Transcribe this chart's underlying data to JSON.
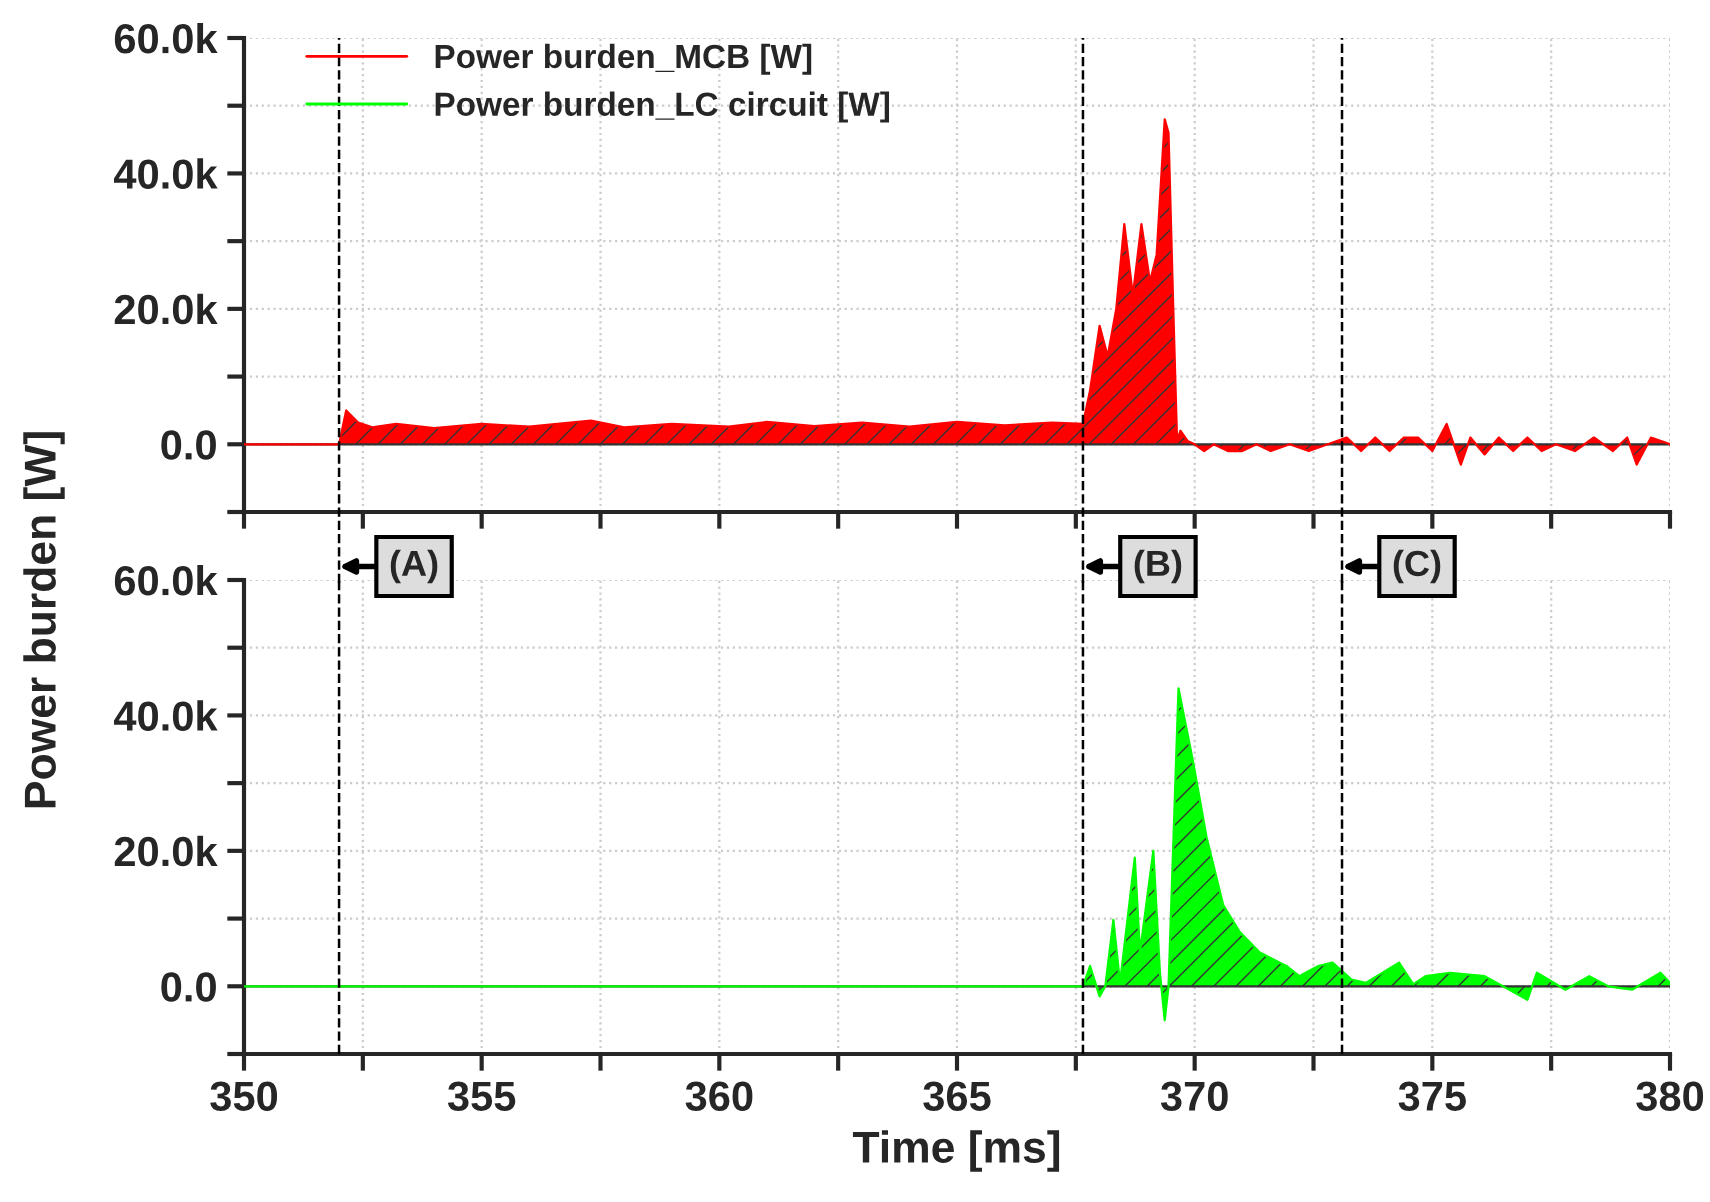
{
  "chart_data": [
    {
      "type": "area",
      "ylabel": "Power burden [W]",
      "xlim": [
        350,
        380
      ],
      "ylim": [
        -10000,
        60000
      ],
      "xticks": [
        {
          "value": 350,
          "label": null
        },
        {
          "value": 352.5,
          "label": null
        },
        {
          "value": 355,
          "label": null
        },
        {
          "value": 357.5,
          "label": null
        },
        {
          "value": 360,
          "label": null
        },
        {
          "value": 362.5,
          "label": null
        },
        {
          "value": 365,
          "label": null
        },
        {
          "value": 367.5,
          "label": null
        },
        {
          "value": 370,
          "label": null
        },
        {
          "value": 372.5,
          "label": null
        },
        {
          "value": 375,
          "label": null
        },
        {
          "value": 377.5,
          "label": null
        },
        {
          "value": 380,
          "label": null
        }
      ],
      "yticks": [
        {
          "value": -10000,
          "label": null
        },
        {
          "value": 0,
          "label": "0.0"
        },
        {
          "value": 10000,
          "label": null
        },
        {
          "value": 20000,
          "label": "20.0k"
        },
        {
          "value": 30000,
          "label": null
        },
        {
          "value": 40000,
          "label": "40.0k"
        },
        {
          "value": 50000,
          "label": null
        },
        {
          "value": 60000,
          "label": "60.0k"
        }
      ],
      "tick_labels": "y",
      "grid": true,
      "legend": "top left",
      "series": [
        {
          "name": "Power burden_MCB [W]",
          "color": "#ff0000",
          "x": [
            350,
            352.0,
            352.15,
            352.4,
            352.7,
            353.2,
            354,
            355,
            356,
            357.3,
            358,
            359,
            360.2,
            361,
            362,
            363,
            364,
            365,
            366,
            367,
            367.65,
            367.8,
            368.0,
            368.17,
            368.35,
            368.52,
            368.7,
            368.88,
            369.06,
            369.2,
            369.37,
            369.45,
            369.55,
            369.63,
            369.7,
            369.85,
            370.0,
            370.2,
            370.4,
            370.7,
            371.0,
            371.3,
            371.6,
            372.0,
            372.4,
            372.8,
            373.2,
            373.5,
            373.8,
            374.1,
            374.4,
            374.7,
            375.0,
            375.3,
            375.6,
            375.8,
            376.1,
            376.4,
            376.7,
            377.0,
            377.3,
            377.6,
            378.0,
            378.4,
            378.8,
            379.1,
            379.3,
            379.6,
            380
          ],
          "values": [
            0,
            0,
            5000,
            3200,
            2500,
            3000,
            2400,
            3000,
            2600,
            3500,
            2500,
            3000,
            2600,
            3300,
            2700,
            3200,
            2600,
            3300,
            2800,
            3200,
            3000,
            8000,
            17500,
            13000,
            20000,
            32500,
            22000,
            32500,
            24000,
            28000,
            48000,
            46000,
            20000,
            500,
            2000,
            500,
            0,
            -1000,
            0,
            -1000,
            -1000,
            0,
            -1000,
            0,
            -1000,
            0,
            1000,
            -1000,
            1000,
            -1000,
            1000,
            1000,
            -1000,
            3000,
            -3000,
            1000,
            -1500,
            1000,
            -1000,
            1000,
            -1000,
            0,
            -1000,
            1000,
            -1000,
            1000,
            -3000,
            1000,
            0
          ]
        }
      ],
      "ref_lines": [
        {
          "axis": "x",
          "value": 352.0,
          "label": "(A)",
          "color": "#000000",
          "line_style": "dashed"
        },
        {
          "axis": "x",
          "value": 367.65,
          "label": "(B)",
          "color": "#000000",
          "line_style": "dashed"
        },
        {
          "axis": "x",
          "value": 373.1,
          "label": "(C)",
          "color": "#000000",
          "line_style": "dashed"
        }
      ]
    },
    {
      "type": "area",
      "xlabel": "Time [ms]",
      "xlim": [
        350,
        380
      ],
      "ylim": [
        -10000,
        60000
      ],
      "xticks": [
        350,
        {
          "value": 352.5,
          "label": null
        },
        355,
        {
          "value": 357.5,
          "label": null
        },
        360,
        {
          "value": 362.5,
          "label": null
        },
        365,
        {
          "value": 367.5,
          "label": null
        },
        370,
        {
          "value": 372.5,
          "label": null
        },
        375,
        {
          "value": 377.5,
          "label": null
        },
        380
      ],
      "yticks": [
        {
          "value": -10000,
          "label": null
        },
        {
          "value": 0,
          "label": "0.0"
        },
        {
          "value": 10000,
          "label": null
        },
        {
          "value": 20000,
          "label": "20.0k"
        },
        {
          "value": 30000,
          "label": null
        },
        {
          "value": 40000,
          "label": "40.0k"
        },
        {
          "value": 50000,
          "label": null
        },
        {
          "value": 60000,
          "label": "60.0k"
        }
      ],
      "grid": true,
      "series": [
        {
          "name": "Power burden_LC circuit [W]",
          "color": "#00ff00",
          "x": [
            350,
            367.65,
            367.8,
            368.0,
            368.12,
            368.29,
            368.43,
            368.74,
            368.85,
            369.13,
            369.27,
            369.37,
            369.45,
            369.66,
            369.97,
            370.25,
            370.6,
            370.95,
            371.37,
            371.93,
            372.2,
            372.6,
            372.9,
            373.3,
            373.6,
            374.3,
            374.6,
            374.86,
            375.37,
            376.1,
            377.0,
            377.2,
            377.8,
            378.3,
            378.7,
            379.2,
            379.8,
            380
          ],
          "values": [
            0,
            0,
            3000,
            -1500,
            0,
            9800,
            500,
            19000,
            5000,
            20000,
            2000,
            -5000,
            0,
            44000,
            33000,
            22000,
            12000,
            8000,
            5000,
            3000,
            1500,
            3000,
            3500,
            1000,
            500,
            3500,
            300,
            1500,
            2000,
            1500,
            -2000,
            2000,
            -500,
            1500,
            0,
            -500,
            2000,
            500
          ]
        }
      ],
      "ref_lines": [
        {
          "axis": "x",
          "value": 352.0,
          "color": "#000000",
          "line_style": "dashed"
        },
        {
          "axis": "x",
          "value": 367.65,
          "color": "#000000",
          "line_style": "dashed"
        },
        {
          "axis": "x",
          "value": 373.1,
          "color": "#000000",
          "line_style": "dashed"
        }
      ]
    }
  ]
}
